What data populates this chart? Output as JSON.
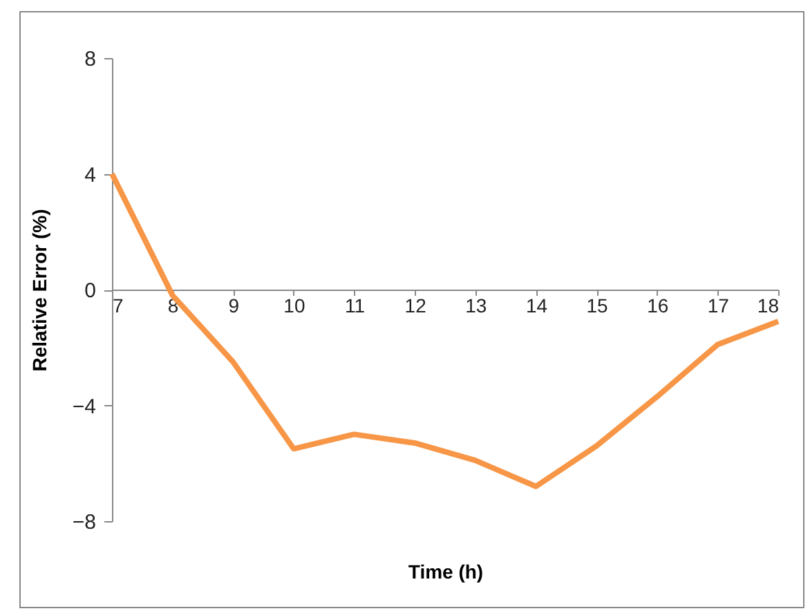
{
  "chart_data": {
    "type": "line",
    "xlabel": "Time (h)",
    "ylabel": "Relative Error (%)",
    "categories": [
      "7",
      "8",
      "9",
      "10",
      "11",
      "12",
      "13",
      "14",
      "15",
      "16",
      "17",
      "18"
    ],
    "series": [
      {
        "color": "#f79646",
        "values": [
          4.0,
          -0.2,
          -2.5,
          -5.5,
          -5.0,
          -5.3,
          -5.9,
          -6.8,
          -5.4,
          -3.7,
          -1.9,
          -1.1
        ]
      }
    ],
    "ylim": [
      -8,
      8
    ],
    "yticks": [
      -8,
      -4,
      0,
      4,
      8
    ],
    "grid": false,
    "marker": "none",
    "line_style": "solid"
  }
}
